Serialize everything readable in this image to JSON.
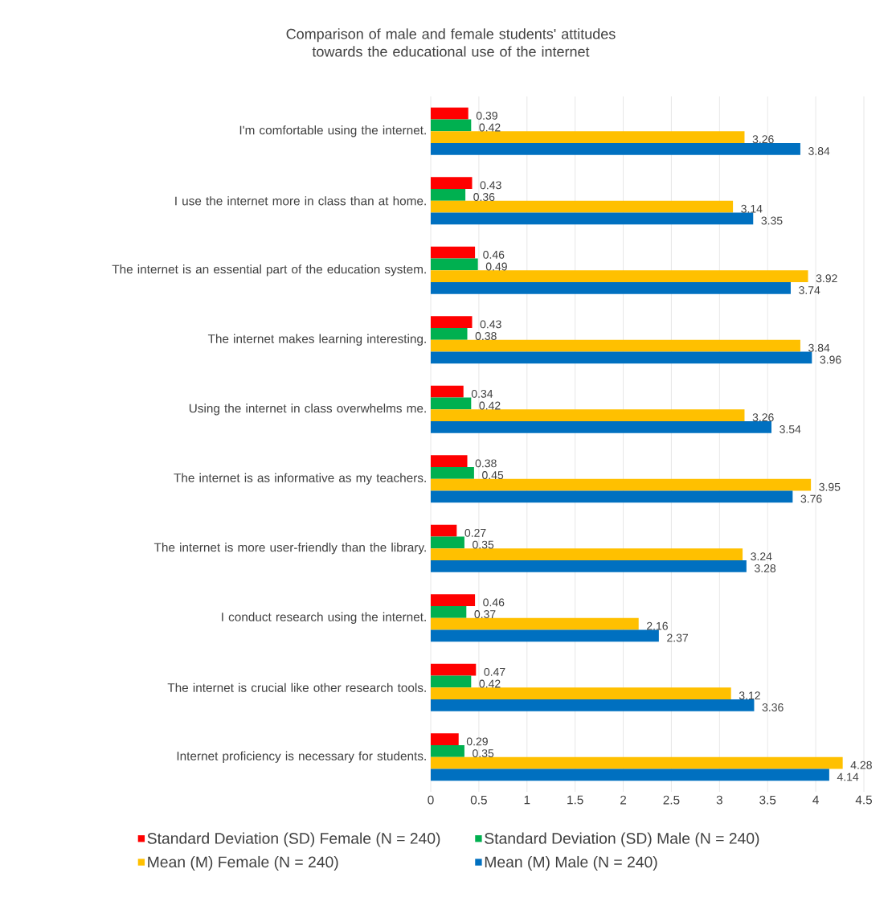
{
  "chart_data": {
    "type": "bar",
    "orientation": "horizontal",
    "title": "Comparison of male and female students' attitudes towards the educational use of the internet",
    "categories": [
      "I'm comfortable using the internet.",
      "I use the internet more in class than at home.",
      "The internet is an essential part of the education system.",
      "The internet makes learning interesting.",
      "Using the internet in class overwhelms me.",
      "The internet is as informative as my teachers.",
      "The internet is more user-friendly than the library.",
      "I conduct research using the internet.",
      "The internet is crucial like other research tools.",
      "Internet proficiency is necessary for students."
    ],
    "series": [
      {
        "name": "Standard  Deviation (SD) Female (N = 240)",
        "color": "#ff0000",
        "values": [
          0.39,
          0.43,
          0.46,
          0.43,
          0.34,
          0.38,
          0.27,
          0.46,
          0.47,
          0.29
        ]
      },
      {
        "name": "Standard  Deviation (SD) Male (N = 240)",
        "color": "#00b050",
        "values": [
          0.42,
          0.36,
          0.49,
          0.38,
          0.42,
          0.45,
          0.35,
          0.37,
          0.42,
          0.35
        ]
      },
      {
        "name": "Mean (M) Female (N = 240)",
        "color": "#ffc000",
        "values": [
          3.26,
          3.14,
          3.92,
          3.84,
          3.26,
          3.95,
          3.24,
          2.16,
          3.12,
          4.28
        ]
      },
      {
        "name": "Mean (M) Male (N = 240)",
        "color": "#0070c0",
        "values": [
          3.84,
          3.35,
          3.74,
          3.96,
          3.54,
          3.76,
          3.28,
          2.37,
          3.36,
          4.14
        ]
      }
    ],
    "xlim": [
      0,
      4.5
    ],
    "xticks": [
      0,
      0.5,
      1,
      1.5,
      2,
      2.5,
      3,
      3.5,
      4,
      4.5
    ],
    "grid": "x",
    "legend": "bottom",
    "data_labels": true
  }
}
